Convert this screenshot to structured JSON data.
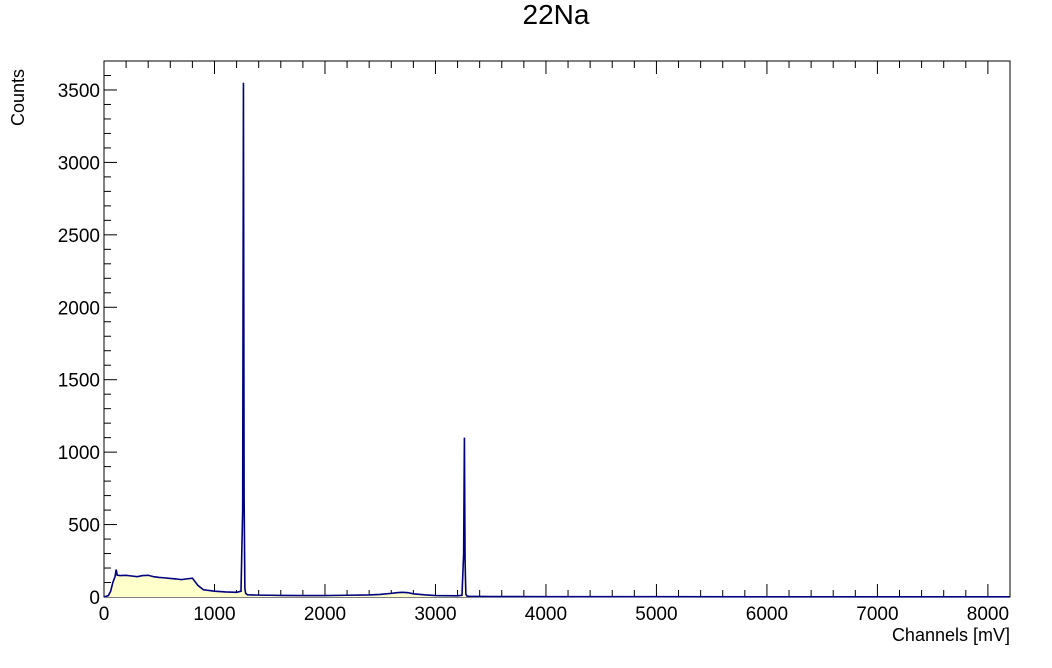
{
  "chart_data": {
    "type": "area",
    "title": "22Na",
    "xlabel": "Channels [mV]",
    "ylabel": "Counts",
    "xlim": [
      0,
      8200
    ],
    "ylim": [
      0,
      3700
    ],
    "x_ticks": [
      0,
      1000,
      2000,
      3000,
      4000,
      5000,
      6000,
      7000,
      8000
    ],
    "y_ticks": [
      0,
      500,
      1000,
      1500,
      2000,
      2500,
      3000,
      3500
    ],
    "grid": false,
    "legend": "none",
    "colors": {
      "line": "#000080",
      "fill": "#ffffcc",
      "frame": "#000000",
      "background": "#ffffff"
    },
    "series": [
      {
        "x": [
          0,
          40,
          60,
          80,
          100,
          110,
          120,
          150,
          200,
          250,
          300,
          350,
          400,
          450,
          500,
          550,
          600,
          650,
          700,
          750,
          800,
          820,
          850,
          900,
          1000,
          1100,
          1200,
          1240,
          1255,
          1262,
          1268,
          1275,
          1282,
          1290,
          1300,
          1400,
          1500,
          1600,
          1800,
          2000,
          2200,
          2400,
          2500,
          2600,
          2650,
          2700,
          2750,
          2800,
          2900,
          3000,
          3100,
          3200,
          3240,
          3255,
          3262,
          3268,
          3275,
          3282,
          3300,
          3400,
          3500,
          3700,
          4000,
          5000,
          6000,
          7000,
          8000,
          8200
        ],
        "values": [
          0,
          10,
          40,
          100,
          140,
          190,
          150,
          148,
          150,
          145,
          140,
          148,
          150,
          140,
          135,
          132,
          128,
          125,
          120,
          125,
          130,
          110,
          80,
          50,
          40,
          35,
          32,
          40,
          600,
          3550,
          700,
          60,
          25,
          20,
          15,
          13,
          12,
          11,
          10,
          10,
          12,
          14,
          18,
          25,
          30,
          32,
          30,
          22,
          15,
          10,
          9,
          8,
          12,
          300,
          1100,
          250,
          20,
          8,
          5,
          4,
          3,
          3,
          2,
          2,
          1,
          1,
          1,
          1
        ]
      }
    ]
  }
}
